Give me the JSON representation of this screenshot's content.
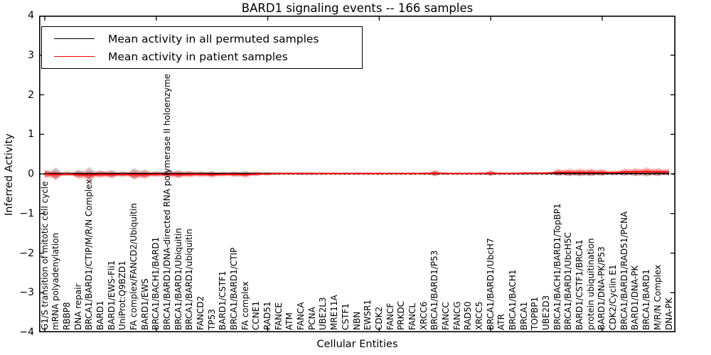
{
  "title": "BARD1 signaling events -- 166 samples",
  "axes": {
    "ylabel": "Inferred Activity",
    "xlabel": "Cellular Entities",
    "yticks": [
      {
        "v": 4,
        "label": "4"
      },
      {
        "v": 3,
        "label": "3"
      },
      {
        "v": 2,
        "label": "2"
      },
      {
        "v": 1,
        "label": "1"
      },
      {
        "v": 0,
        "label": "0"
      },
      {
        "v": -1,
        "label": "−1"
      },
      {
        "v": -2,
        "label": "−2"
      },
      {
        "v": -3,
        "label": "−3"
      },
      {
        "v": -4,
        "label": "−4"
      }
    ],
    "x_major_tick_indices": [
      0,
      10,
      20,
      30,
      40,
      50
    ]
  },
  "legend": {
    "items": [
      {
        "label": "Mean activity in all permuted samples",
        "color": "#000000"
      },
      {
        "label": "Mean activity in patient samples",
        "color": "#ff0000"
      }
    ]
  },
  "chart_data": {
    "type": "line",
    "title": "BARD1 signaling events -- 166 samples",
    "xlabel": "Cellular Entities",
    "ylabel": "Inferred Activity",
    "ylim": [
      -4,
      4
    ],
    "grid": false,
    "legend_position": "upper left",
    "zero_line": {
      "value": 0,
      "style": "dotted",
      "color": "#000000"
    },
    "categories": [
      "G1/S transition of mitotic cell cycle",
      "mRNA polyadenylation",
      "RBBP8",
      "DNA repair",
      "BRCA1/BARD1/CTIP/M/R/N Complex",
      "BARD1",
      "BARD1/EWS-Fli1",
      "UniProt:Q9BZD1",
      "FA complex/FANCD2/Ubiquitin",
      "BARD1/EWS",
      "BRCA1/BACH1/BARD1",
      "BRCA1/BARD1/DNA-directed RNA polymerase II holoenzyme",
      "BRCA1/BARD1/Ubiquitin",
      "BRCA1/BARD1/ubiquitin",
      "FANCD2",
      "TP53",
      "BARD1/CSTF1",
      "BRCA1/BARD1/CTIP",
      "FA complex",
      "CCNE1",
      "RAD51",
      "FANCE",
      "ATM",
      "FANCA",
      "PCNA",
      "UBE2L3",
      "MRE11A",
      "CSTF1",
      "NBN",
      "EWSR1",
      "CDK2",
      "FANCF",
      "PRKDC",
      "FANCL",
      "XRCC6",
      "BRCA1/BARD1/P53",
      "FANCC",
      "FANCG",
      "RAD50",
      "XRCC5",
      "BRCA1/BARD1/UbcH7",
      "ATR",
      "BRCA1/BACH1",
      "BRCA1",
      "TOPBP1",
      "UBE2D3",
      "BRCA1/BACH1/BARD1/TopBP1",
      "BRCA1/BARD1/UbcH5C",
      "BARD1/CSTF1/BRCA1",
      "protein ubiquitination",
      "BARD1/DNA-PK/P53",
      "CDK2/Cyclin E1",
      "BRCA1/BARD1/RAD51/PCNA",
      "BARD1/DNA-PK",
      "BRCA1/BARD1",
      "M/R/N Complex",
      "DNA-PK"
    ],
    "series": [
      {
        "name": "Mean activity in all permuted samples",
        "color": "#000000",
        "values": [
          0.01,
          0.01,
          0.01,
          0.01,
          0.01,
          0.01,
          0.01,
          0.01,
          0.01,
          0.01,
          0.01,
          0.01,
          0.01,
          0.01,
          0.01,
          0.01,
          0.01,
          0.01,
          0.01,
          0.01,
          0.01,
          0.01,
          0.01,
          0.01,
          0.01,
          0.01,
          0.01,
          0.01,
          0.01,
          0.01,
          0.01,
          0.01,
          0.01,
          0.01,
          0.01,
          0.01,
          0.01,
          0.01,
          0.01,
          0.01,
          0.01,
          0.01,
          0.01,
          0.01,
          0.01,
          0.01,
          0.01,
          0.01,
          0.01,
          0.01,
          0.01,
          0.01,
          0.01,
          0.01,
          0.01,
          0.01,
          0.01
        ]
      },
      {
        "name": "Mean activity in patient samples",
        "color": "#ff0000",
        "values": [
          0.0,
          -0.02,
          0.0,
          -0.02,
          -0.03,
          -0.01,
          -0.02,
          -0.01,
          -0.02,
          -0.02,
          -0.01,
          -0.01,
          -0.02,
          -0.01,
          -0.01,
          -0.02,
          -0.01,
          -0.01,
          -0.02,
          0.0,
          0.0,
          0.01,
          0.01,
          0.01,
          0.01,
          0.01,
          0.01,
          0.01,
          0.01,
          0.01,
          0.01,
          0.01,
          0.01,
          0.01,
          0.01,
          0.02,
          0.01,
          0.01,
          0.01,
          0.01,
          0.02,
          0.01,
          0.01,
          0.02,
          0.02,
          0.02,
          0.04,
          0.04,
          0.04,
          0.04,
          0.04,
          0.03,
          0.05,
          0.05,
          0.06,
          0.05,
          0.05
        ]
      }
    ],
    "bands": [
      {
        "name": "permuted-samples-spread",
        "color": "#000000",
        "opacity": 0.18,
        "half_widths": [
          0.09,
          0.16,
          0.06,
          0.09,
          0.17,
          0.08,
          0.09,
          0.06,
          0.14,
          0.1,
          0.06,
          0.08,
          0.09,
          0.07,
          0.06,
          0.07,
          0.05,
          0.06,
          0.07,
          0.05,
          0.04,
          0.03,
          0.03,
          0.03,
          0.03,
          0.025,
          0.025,
          0.025,
          0.025,
          0.025,
          0.025,
          0.025,
          0.025,
          0.025,
          0.03,
          0.06,
          0.03,
          0.025,
          0.025,
          0.03,
          0.05,
          0.03,
          0.03,
          0.035,
          0.03,
          0.03,
          0.06,
          0.07,
          0.07,
          0.07,
          0.06,
          0.05,
          0.06,
          0.07,
          0.08,
          0.07,
          0.06
        ]
      },
      {
        "name": "patient-samples-spread",
        "color": "#ff0000",
        "opacity": 0.22,
        "core_opacity": 0.38,
        "half_widths": [
          0.11,
          0.13,
          0.05,
          0.11,
          0.14,
          0.09,
          0.1,
          0.07,
          0.125,
          0.11,
          0.07,
          0.09,
          0.1,
          0.08,
          0.07,
          0.08,
          0.06,
          0.07,
          0.08,
          0.055,
          0.045,
          0.035,
          0.035,
          0.035,
          0.035,
          0.03,
          0.03,
          0.03,
          0.03,
          0.03,
          0.03,
          0.03,
          0.03,
          0.03,
          0.035,
          0.09,
          0.035,
          0.03,
          0.03,
          0.035,
          0.08,
          0.035,
          0.035,
          0.04,
          0.035,
          0.035,
          0.09,
          0.1,
          0.1,
          0.1,
          0.09,
          0.06,
          0.09,
          0.1,
          0.11,
          0.1,
          0.09
        ]
      }
    ]
  }
}
